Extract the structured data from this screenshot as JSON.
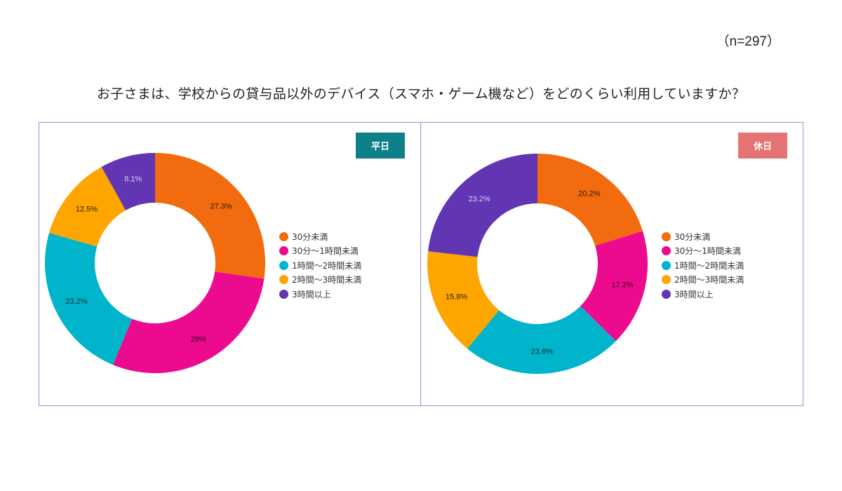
{
  "header": {
    "sample_size": "（n=297）",
    "question": "お子さまは、学校からの貸与品以外のデバイス（スマホ・ゲーム機など）をどのくらい利用していますか？"
  },
  "legend": {
    "items": [
      {
        "label": "30分未満",
        "color": "#f26b0f"
      },
      {
        "label": "30分〜1時間未満",
        "color": "#ec0a8e"
      },
      {
        "label": "1時間〜2時間未満",
        "color": "#00b5cb"
      },
      {
        "label": "2時間〜3時間未満",
        "color": "#fea500"
      },
      {
        "label": "3時間以上",
        "color": "#6236b3"
      }
    ]
  },
  "panels": [
    {
      "badge": "平日",
      "badge_color": "#0e8089"
    },
    {
      "badge": "休日",
      "badge_color": "#e57373"
    }
  ],
  "chart_data": [
    {
      "type": "pie",
      "subtype": "donut",
      "title": "平日",
      "categories": [
        "30分未満",
        "30分〜1時間未満",
        "1時間〜2時間未満",
        "2時間〜3時間未満",
        "3時間以上"
      ],
      "values": [
        27.3,
        29,
        23.2,
        12.5,
        8.1
      ],
      "labels": [
        "27.3%",
        "29%",
        "23.2%",
        "12.5%",
        "8.1%"
      ],
      "colors": [
        "#f26b0f",
        "#ec0a8e",
        "#00b5cb",
        "#fea500",
        "#6236b3"
      ],
      "label_colors": [
        "#2a1a10",
        "#2a0a1a",
        "#0a2a30",
        "#2a2000",
        "#d8d0ee"
      ],
      "legend_position": "right",
      "start_angle": "12 o'clock, clockwise"
    },
    {
      "type": "pie",
      "subtype": "donut",
      "title": "休日",
      "categories": [
        "30分未満",
        "30分〜1時間未満",
        "1時間〜2時間未満",
        "2時間〜3時間未満",
        "3時間以上"
      ],
      "values": [
        20.2,
        17.2,
        23.6,
        15.8,
        23.2
      ],
      "labels": [
        "20.2%",
        "17.2%",
        "23.6%",
        "15.8%",
        "23.2%"
      ],
      "colors": [
        "#f26b0f",
        "#ec0a8e",
        "#00b5cb",
        "#fea500",
        "#6236b3"
      ],
      "label_colors": [
        "#2a1a10",
        "#2a0a1a",
        "#0a2a30",
        "#2a2000",
        "#d8d0ee"
      ],
      "legend_position": "right",
      "start_angle": "12 o'clock, clockwise"
    }
  ]
}
